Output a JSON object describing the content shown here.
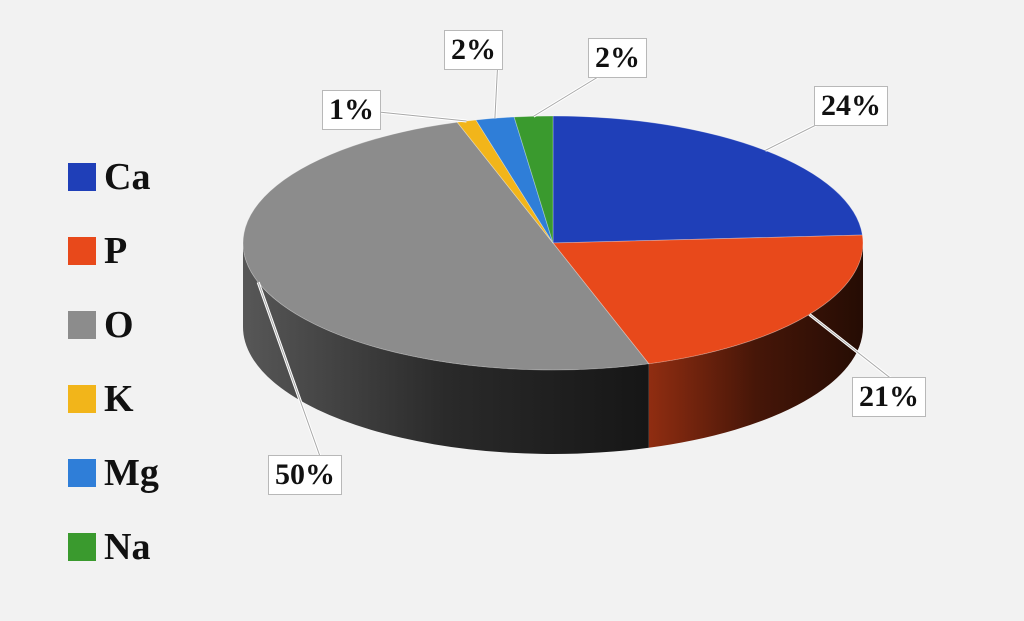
{
  "chart_data": {
    "type": "pie",
    "style": "3d",
    "categories": [
      "Ca",
      "P",
      "O",
      "K",
      "Mg",
      "Na"
    ],
    "values": [
      24,
      21,
      50,
      1,
      2,
      2
    ],
    "data_labels": [
      "24%",
      "21%",
      "50%",
      "1%",
      "2%",
      "2%"
    ],
    "colors": [
      "#1f3fb8",
      "#e8491b",
      "#8c8c8c",
      "#f2b51a",
      "#2f7ed8",
      "#3a9a2e"
    ],
    "legend": "left"
  }
}
